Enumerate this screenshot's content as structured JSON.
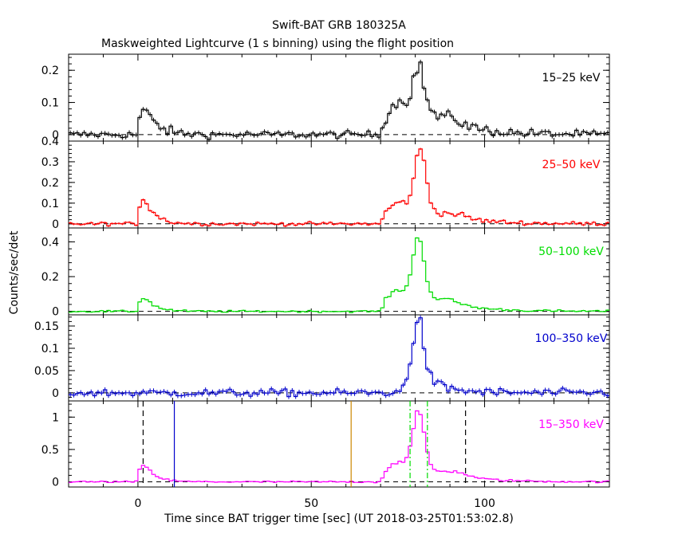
{
  "title": "Swift-BAT GRB 180325A",
  "subtitle": "Maskweighted Lightcurve (1 s binning) using the flight position",
  "xlabel": "Time since BAT trigger time [sec] (UT 2018-03-25T01:53:02.8)",
  "ylabel": "Counts/sec/det",
  "chart_data": [
    {
      "type": "line",
      "step": true,
      "series": [
        {
          "name": "15–25 keV",
          "color": "#000000"
        }
      ],
      "band_label": "15–25 keV",
      "xlim": [
        -20,
        136
      ],
      "ylim": [
        -0.02,
        0.25
      ],
      "yticks": [
        0,
        0.1,
        0.2
      ],
      "ytick_labels": [
        "0",
        "0.1",
        "0.2"
      ],
      "pulses": [
        {
          "start": 0,
          "peak": 0.075,
          "tau": 3.5,
          "rise": 1
        },
        {
          "start": 70,
          "peak": 0.1,
          "tau": 10,
          "rise": 6
        },
        {
          "center": 81,
          "peak": 0.13,
          "width": 1.6
        },
        {
          "center": 91,
          "peak": 0.015,
          "width": 3
        }
      ],
      "noise": 0.008
    },
    {
      "type": "line",
      "step": true,
      "series": [
        {
          "name": "25–50 keV",
          "color": "#ff0000"
        }
      ],
      "band_label": "25–50 keV",
      "xlim": [
        -20,
        136
      ],
      "ylim": [
        -0.02,
        0.4
      ],
      "yticks": [
        0,
        0.1,
        0.2,
        0.3,
        0.4
      ],
      "ytick_labels": [
        "0",
        "0.1",
        "0.2",
        "0.3",
        "0.4"
      ],
      "pulses": [
        {
          "start": 0,
          "peak": 0.12,
          "tau": 3,
          "rise": 1
        },
        {
          "start": 70,
          "peak": 0.1,
          "tau": 10,
          "rise": 6
        },
        {
          "center": 81.5,
          "peak": 0.28,
          "width": 1.6
        },
        {
          "center": 92,
          "peak": 0.015,
          "width": 3
        }
      ],
      "noise": 0.006
    },
    {
      "type": "line",
      "step": true,
      "series": [
        {
          "name": "50–100 keV",
          "color": "#00dd00"
        }
      ],
      "band_label": "50–100 keV",
      "xlim": [
        -20,
        136
      ],
      "ylim": [
        -0.02,
        0.48
      ],
      "yticks": [
        0,
        0.2,
        0.4
      ],
      "ytick_labels": [
        "0",
        "0.2",
        "0.4"
      ],
      "pulses": [
        {
          "start": 0,
          "peak": 0.08,
          "tau": 3,
          "rise": 1
        },
        {
          "start": 70,
          "peak": 0.12,
          "tau": 10,
          "rise": 6
        },
        {
          "center": 81,
          "peak": 0.33,
          "width": 1.6
        },
        {
          "center": 90,
          "peak": 0.02,
          "width": 3
        }
      ],
      "noise": 0.004
    },
    {
      "type": "line",
      "step": true,
      "series": [
        {
          "name": "100–350 keV",
          "color": "#0000cc"
        }
      ],
      "band_label": "100–350 keV",
      "xlim": [
        -20,
        136
      ],
      "ylim": [
        -0.018,
        0.175
      ],
      "yticks": [
        0,
        0.05,
        0.1,
        0.15
      ],
      "ytick_labels": [
        "0",
        "0.05",
        "0.1",
        "0.15"
      ],
      "pulses": [
        {
          "start": 76,
          "peak": 0.04,
          "tau": 6,
          "rise": 3
        },
        {
          "center": 81,
          "peak": 0.12,
          "width": 1.6
        }
      ],
      "noise": 0.006
    },
    {
      "type": "line",
      "step": true,
      "series": [
        {
          "name": "15–350 keV",
          "color": "#ff00ff"
        }
      ],
      "band_label": "15–350 keV",
      "xlim": [
        -20,
        136
      ],
      "ylim": [
        -0.08,
        1.25
      ],
      "yticks": [
        0,
        0.5,
        1
      ],
      "ytick_labels": [
        "0",
        "0.5",
        "1"
      ],
      "xticks": [
        0,
        50,
        100
      ],
      "xtick_labels": [
        "0",
        "50",
        "100"
      ],
      "pulses": [
        {
          "start": 0,
          "peak": 0.26,
          "tau": 3,
          "rise": 1
        },
        {
          "start": 70,
          "peak": 0.3,
          "tau": 10,
          "rise": 6
        },
        {
          "center": 81,
          "peak": 0.85,
          "width": 1.6
        },
        {
          "center": 92,
          "peak": 0.06,
          "width": 3
        }
      ],
      "noise": 0.01,
      "vlines": [
        {
          "x": 1.5,
          "color": "#000000",
          "style": "dashed"
        },
        {
          "x": 94.5,
          "color": "#000000",
          "style": "dashed"
        },
        {
          "x": 10.5,
          "color": "#0000cc",
          "style": "solid"
        },
        {
          "x": 61.5,
          "color": "#cc8800",
          "style": "solid"
        },
        {
          "x": 78.5,
          "color": "#00dd00",
          "style": "dashdot"
        },
        {
          "x": 83.5,
          "color": "#00dd00",
          "style": "dashdot"
        }
      ]
    }
  ]
}
